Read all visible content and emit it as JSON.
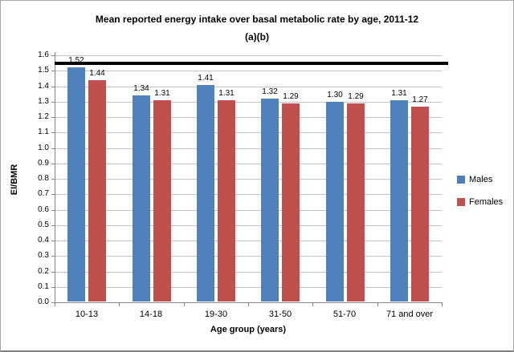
{
  "title": {
    "line1": "Mean reported energy intake over basal metabolic rate by age, 2011-12",
    "line2": "(a)(b)"
  },
  "chart_data": {
    "type": "bar",
    "categories": [
      "10-13",
      "14-18",
      "19-30",
      "31-50",
      "51-70",
      "71 and over"
    ],
    "series": [
      {
        "name": "Males",
        "color": "#4f81bd",
        "values": [
          1.52,
          1.34,
          1.41,
          1.32,
          1.3,
          1.31
        ]
      },
      {
        "name": "Females",
        "color": "#c0504d",
        "values": [
          1.44,
          1.31,
          1.31,
          1.29,
          1.29,
          1.27
        ]
      }
    ],
    "title": "Mean reported energy intake over basal metabolic rate by age, 2011-12 (a)(b)",
    "xlabel": "Age group (years)",
    "ylabel": "EI/BMR",
    "ylim": [
      0.0,
      1.6
    ],
    "ytick_step": 0.1,
    "grid": true,
    "legend_position": "right",
    "data_labels": true,
    "reference_line": {
      "value": 1.55,
      "color": "#000000"
    }
  },
  "colors": {
    "males": "#4f81bd",
    "females": "#c0504d",
    "gridline": "#c3c3c3",
    "axis": "#868686",
    "reference_line": "#000000"
  }
}
